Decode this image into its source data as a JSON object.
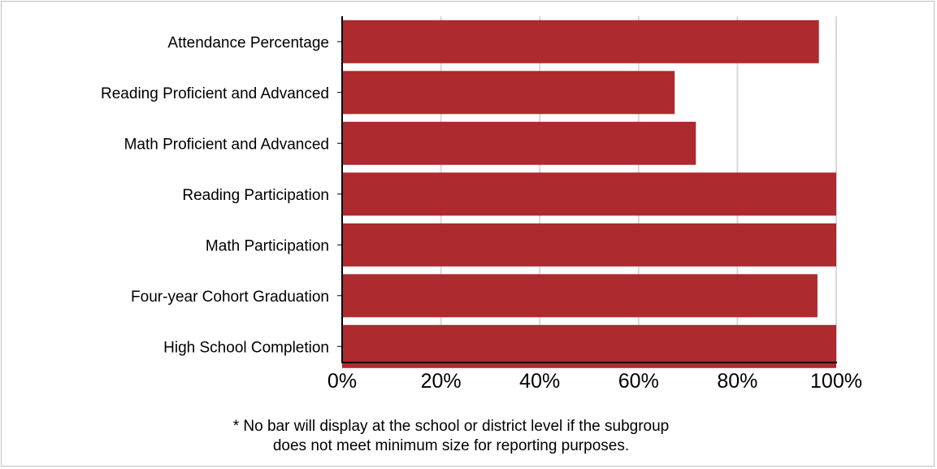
{
  "chart_data": {
    "type": "bar",
    "orientation": "horizontal",
    "categories": [
      "Attendance Percentage",
      "Reading Proficient and Advanced",
      "Math Proficient and Advanced",
      "Reading Participation",
      "Math Participation",
      "Four-year Cohort Graduation",
      "High School Completion"
    ],
    "values": [
      96.5,
      67.3,
      71.6,
      100,
      100,
      96.2,
      100
    ],
    "xlim": [
      0,
      100
    ],
    "ticks": [
      "0%",
      "20%",
      "40%",
      "60%",
      "80%",
      "100%"
    ],
    "tick_values": [
      0,
      20,
      40,
      60,
      80,
      100
    ],
    "bar_color": "#ad2a2e",
    "grid": true,
    "title": "",
    "xlabel": "",
    "ylabel": ""
  },
  "footnote": {
    "line1": "* No bar will display at the school or district level if the subgroup",
    "line2": "does not meet minimum size for reporting purposes."
  }
}
